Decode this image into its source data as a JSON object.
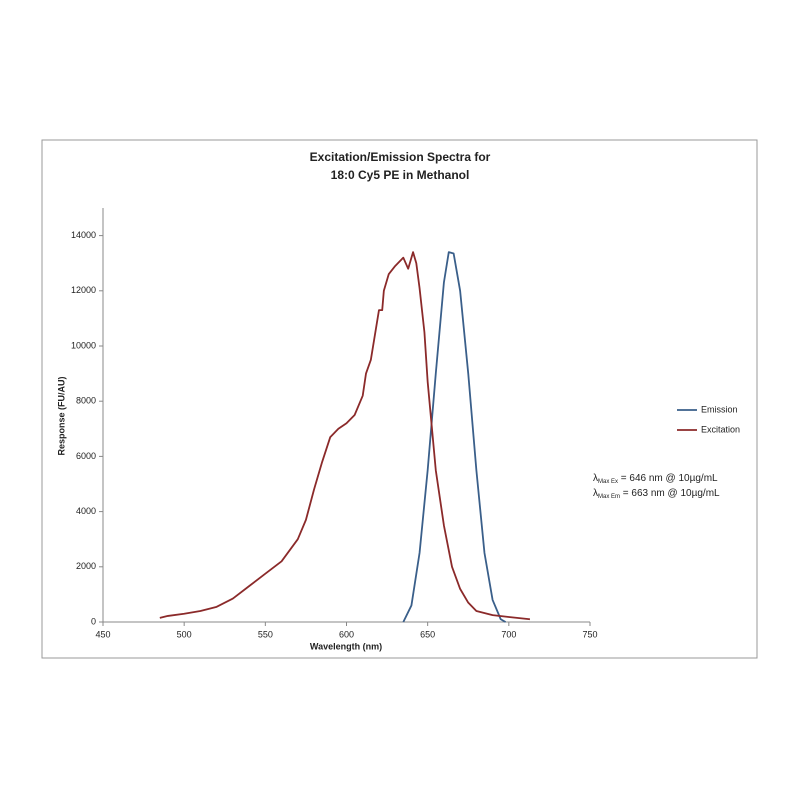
{
  "chart_data": {
    "type": "line",
    "title": [
      "Excitation/Emission Spectra for",
      "18:0 Cy5 PE in Methanol"
    ],
    "x_label": "Wavelength (nm)",
    "y_label": "Response (FU/AU)",
    "xlim": [
      450,
      750
    ],
    "xticks": [
      450,
      500,
      550,
      600,
      650,
      700,
      750
    ],
    "ylim": [
      0,
      15000
    ],
    "yticks": [
      0,
      2000,
      4000,
      6000,
      8000,
      10000,
      12000,
      14000
    ],
    "grid": false,
    "legend": "right",
    "series": [
      {
        "name": "Emission",
        "color": "#3a5f8a",
        "x": [
          635,
          640,
          645,
          650,
          655,
          660,
          663,
          666,
          670,
          675,
          680,
          685,
          690,
          695,
          698
        ],
        "values": [
          0,
          600,
          2500,
          5500,
          9000,
          12300,
          13400,
          13350,
          12000,
          9000,
          5500,
          2500,
          800,
          100,
          0
        ]
      },
      {
        "name": "Excitation",
        "color": "#8b2a2a",
        "x": [
          485,
          490,
          500,
          510,
          520,
          530,
          540,
          550,
          560,
          570,
          575,
          580,
          585,
          590,
          595,
          600,
          605,
          610,
          612,
          615,
          620,
          622,
          623,
          626,
          630,
          635,
          638,
          641,
          643,
          645,
          648,
          650,
          655,
          660,
          665,
          670,
          675,
          680,
          690,
          700,
          713
        ],
        "values": [
          150,
          220,
          300,
          400,
          550,
          850,
          1300,
          1750,
          2200,
          3000,
          3700,
          4800,
          5800,
          6700,
          7000,
          7200,
          7500,
          8200,
          9000,
          9500,
          11300,
          11300,
          12000,
          12600,
          12900,
          13200,
          12800,
          13400,
          13000,
          12100,
          10500,
          8700,
          5500,
          3500,
          2000,
          1200,
          700,
          400,
          250,
          180,
          100
        ]
      }
    ],
    "annotations": [
      {
        "symbol": "λ",
        "subscript": "Max Ex",
        "text": " = 646 nm @ 10µg/mL"
      },
      {
        "symbol": "λ",
        "subscript": "Max Em",
        "text": " = 663 nm @ 10µg/mL"
      }
    ]
  }
}
